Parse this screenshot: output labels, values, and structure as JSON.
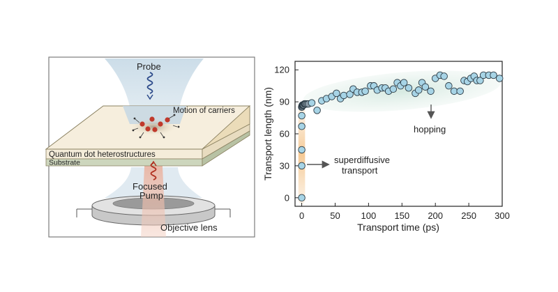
{
  "diagram": {
    "probe": "Probe",
    "motion": "Motion of carriers",
    "qd_layer": "Quantum dot heterostructures",
    "substrate": "Substrate",
    "pump": [
      "Focused",
      "Pump"
    ],
    "lens": "Objective lens"
  },
  "chart_data": {
    "type": "scatter",
    "xlabel": "Transport time (ps)",
    "ylabel": "Transport length (nm)",
    "xlim": [
      -10,
      300
    ],
    "ylim": [
      -8,
      128
    ],
    "xticks": [
      0,
      50,
      100,
      150,
      200,
      250,
      300
    ],
    "yticks": [
      0,
      30,
      60,
      90,
      120
    ],
    "grid": false,
    "annotations": {
      "superdiffusive": [
        "superdiffusive",
        "transport"
      ],
      "hopping": "hopping"
    },
    "x": [
      0,
      0,
      0,
      0,
      0,
      0,
      0.3,
      0.6,
      1,
      1.5,
      2,
      3,
      4,
      5,
      6,
      8,
      10,
      15,
      23,
      30,
      37,
      45,
      52,
      58,
      63,
      72,
      77,
      83,
      90,
      95,
      103,
      108,
      113,
      120,
      125,
      130,
      137,
      143,
      148,
      153,
      160,
      170,
      175,
      180,
      185,
      193,
      200,
      207,
      213,
      220,
      228,
      237,
      243,
      248,
      253,
      258,
      262,
      267,
      272,
      280,
      287,
      296
    ],
    "y": [
      0,
      30,
      45,
      67,
      77,
      85,
      86,
      86,
      87,
      87,
      87,
      87,
      88,
      88,
      88,
      88,
      88,
      89,
      82,
      91,
      93,
      95,
      98,
      93,
      96,
      97,
      102,
      99,
      99,
      100,
      105,
      105,
      101,
      103,
      103,
      100,
      102,
      108,
      105,
      108,
      103,
      98,
      101,
      108,
      104,
      100,
      112,
      115,
      114,
      105,
      100,
      100,
      110,
      109,
      112,
      114,
      110,
      110,
      115,
      115,
      115,
      112
    ]
  }
}
